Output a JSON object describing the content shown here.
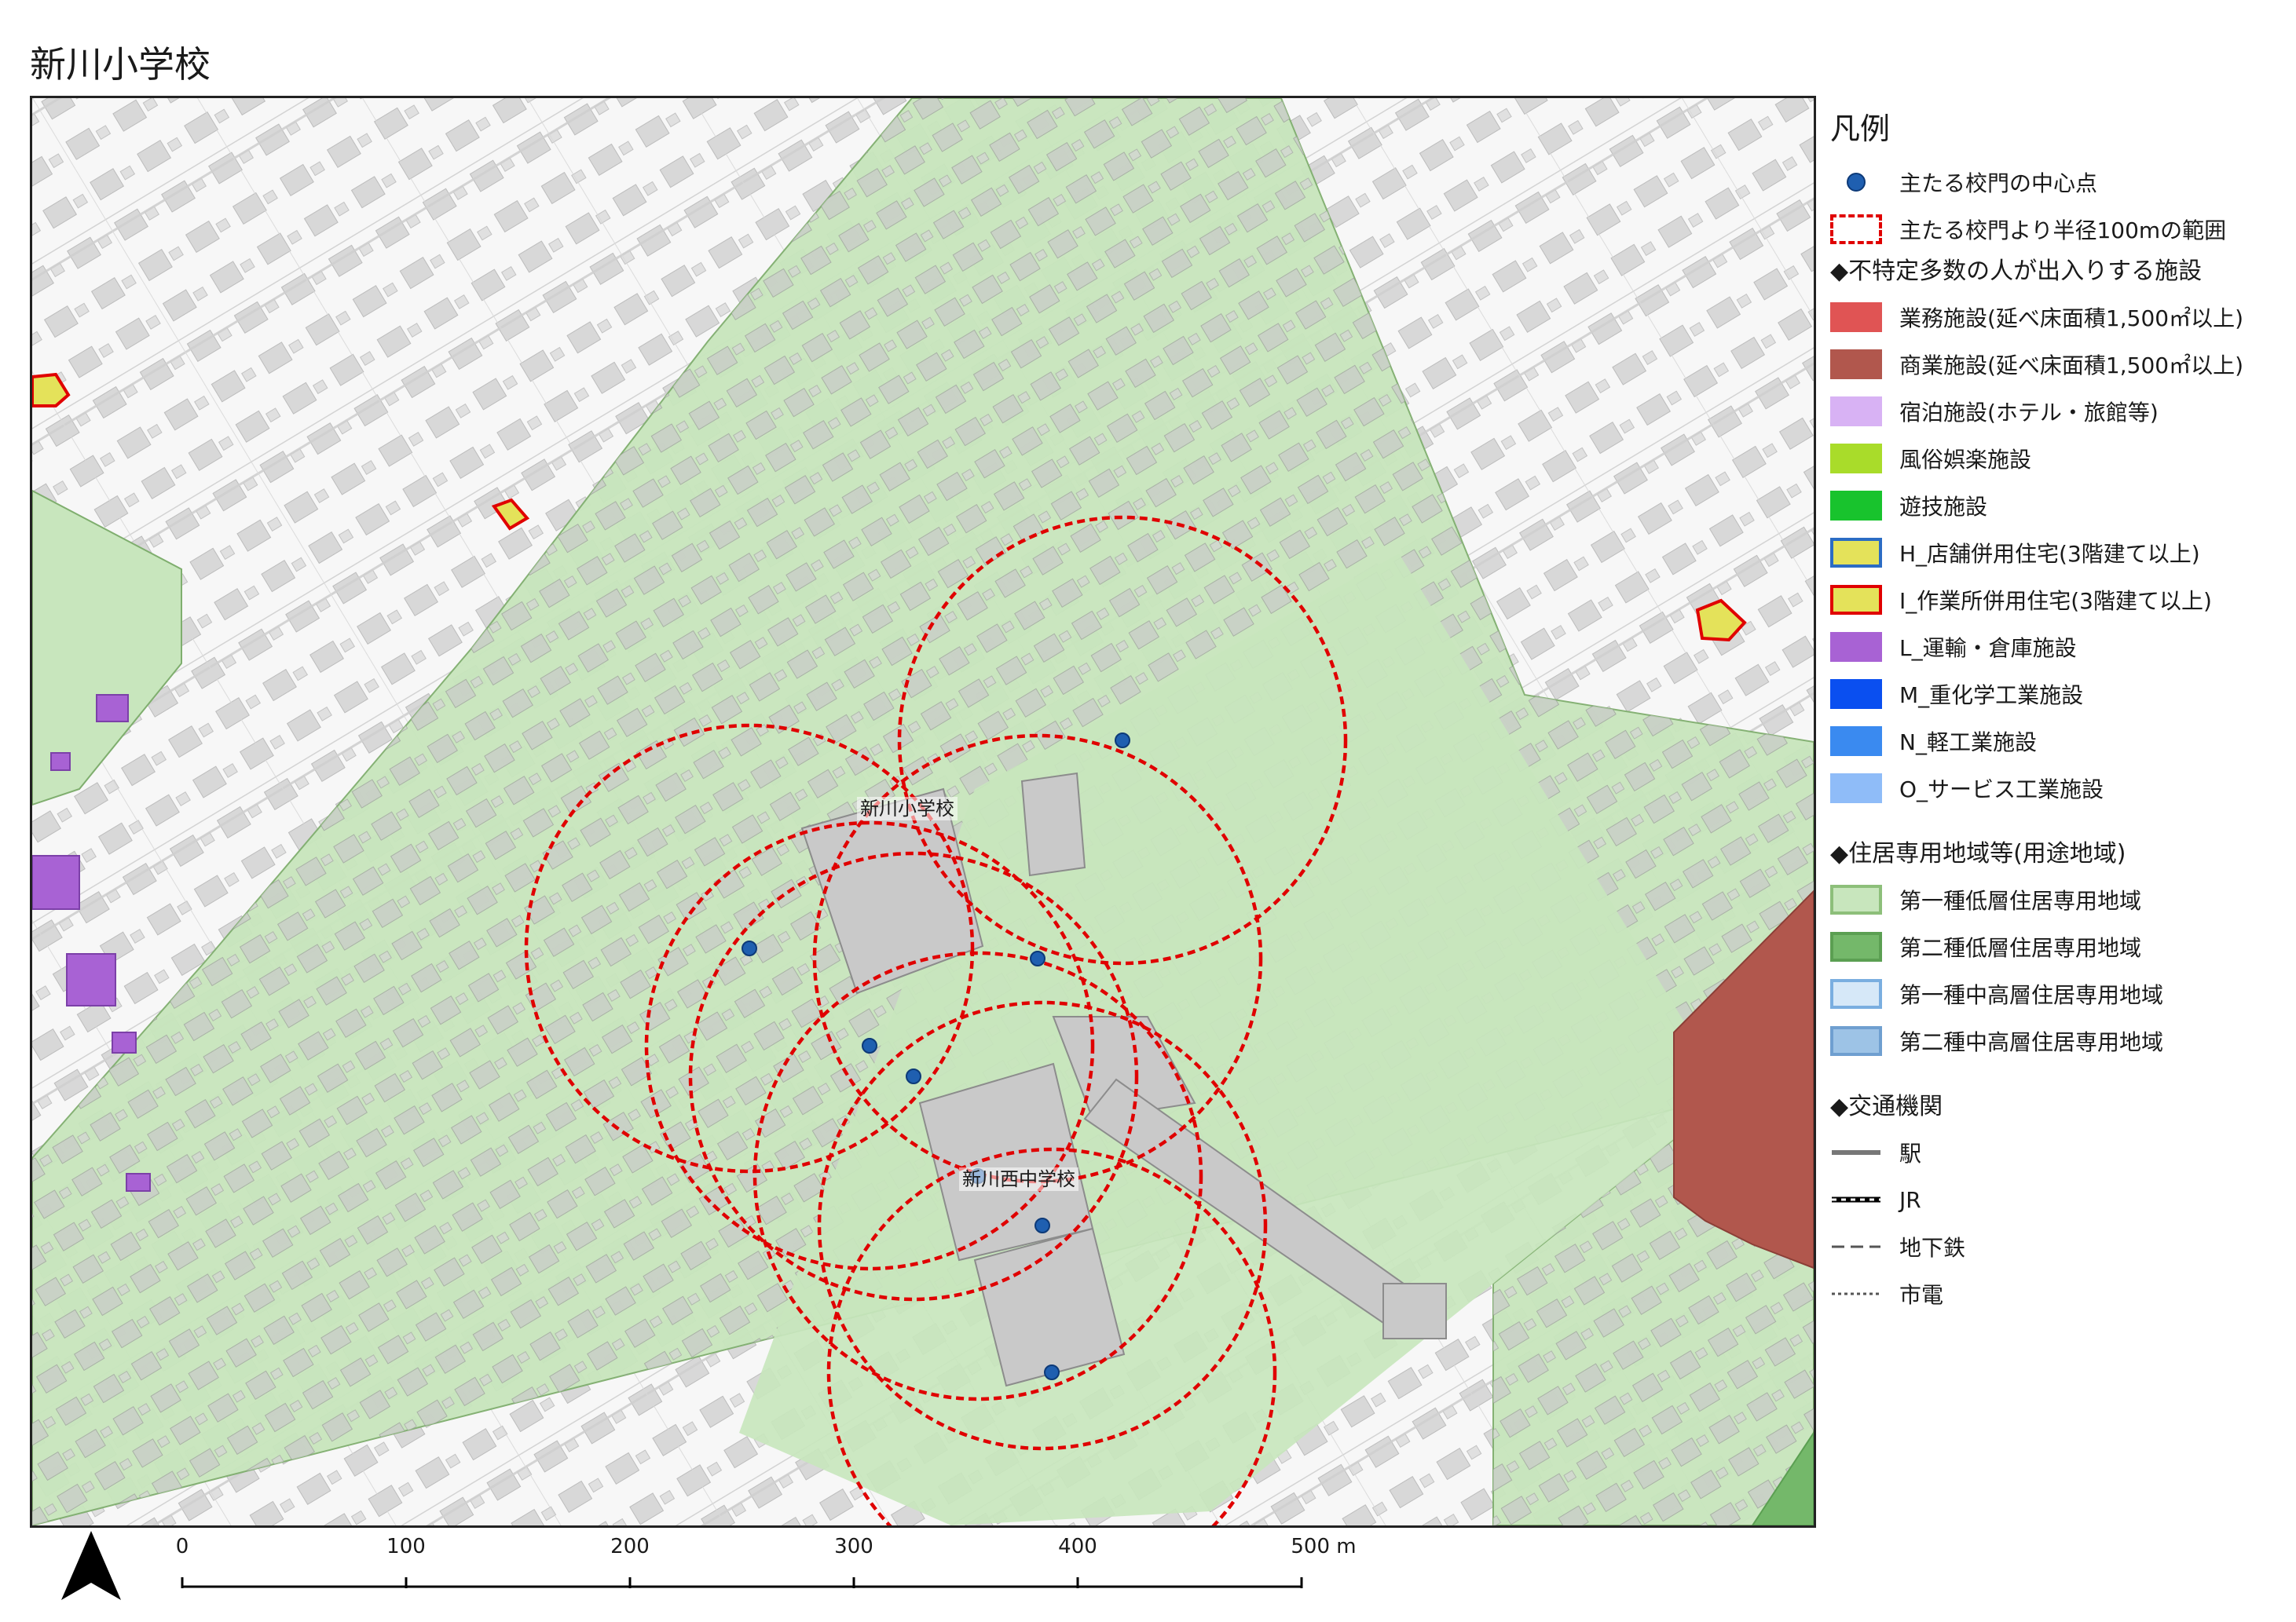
{
  "title": "新川小学校",
  "map": {
    "labels": {
      "school": "新川小学校",
      "middle_school": "新川西中学校"
    },
    "gate_points": [
      [
        913,
        1083
      ],
      [
        1066,
        1207
      ],
      [
        1122,
        1246
      ],
      [
        1280,
        1096
      ],
      [
        1204,
        1373
      ],
      [
        1286,
        1436
      ],
      [
        1298,
        1623
      ],
      [
        1388,
        818
      ]
    ],
    "buffer_circles_r": 284
  },
  "legend": {
    "title": "凡例",
    "gate_point": "主たる校門の中心点",
    "gate_range": "主たる校門より半径100mの範囲",
    "section_facilities": "◆不特定多数の人が出入りする施設",
    "facilities": [
      {
        "label": "業務施設(延べ床面積1,500㎡以上)",
        "fill": "#e05454",
        "stroke": "#e05454"
      },
      {
        "label": "商業施設(延べ床面積1,500㎡以上)",
        "fill": "#b1574d",
        "stroke": "#b1574d"
      },
      {
        "label": "宿泊施設(ホテル・旅館等)",
        "fill": "#d8b2f4",
        "stroke": "#d8b2f4"
      },
      {
        "label": "風俗娯楽施設",
        "fill": "#a9dc2a",
        "stroke": "#a9dc2a"
      },
      {
        "label": "遊技施設",
        "fill": "#18c32d",
        "stroke": "#18c32d"
      },
      {
        "label": "H_店舗併用住宅(3階建て以上)",
        "fill": "#e4e25a",
        "stroke": "#2b6cc4"
      },
      {
        "label": "I_作業所併用住宅(3階建て以上)",
        "fill": "#e4e25a",
        "stroke": "#e00000"
      },
      {
        "label": "L_運輸・倉庫施設",
        "fill": "#a862d4",
        "stroke": "#a862d4"
      },
      {
        "label": "M_重化学工業施設",
        "fill": "#0a4ff0",
        "stroke": "#0a4ff0"
      },
      {
        "label": "N_軽工業施設",
        "fill": "#3a8af0",
        "stroke": "#3a8af0"
      },
      {
        "label": "O_サービス工業施設",
        "fill": "#8fbcf8",
        "stroke": "#8fbcf8"
      }
    ],
    "section_zones": "◆住居専用地域等(用途地域)",
    "zones": [
      {
        "label": "第一種低層住居専用地域",
        "fill": "#c8e6bd",
        "stroke": "#8dbf7a"
      },
      {
        "label": "第二種低層住居専用地域",
        "fill": "#74b86a",
        "stroke": "#5b9f52"
      },
      {
        "label": "第一種中高層住居専用地域",
        "fill": "#d6e8f8",
        "stroke": "#7aaee0"
      },
      {
        "label": "第二種中高層住居専用地域",
        "fill": "#9dc3e6",
        "stroke": "#6f9fd0"
      }
    ],
    "section_transport": "◆交通機関",
    "transport": [
      {
        "label": "駅",
        "style": "solid"
      },
      {
        "label": "JR",
        "style": "rail"
      },
      {
        "label": "地下鉄",
        "style": "dash"
      },
      {
        "label": "市電",
        "style": "dot"
      }
    ]
  },
  "scale": {
    "ticks": [
      "0",
      "100",
      "200",
      "300",
      "400",
      "500 m"
    ]
  },
  "colors": {
    "zone1_fill": "#c8e6bd",
    "zone2_fill": "#74b86a",
    "building": "#c9c9c9",
    "road_edge": "#cfcfcf",
    "circle": "#e00000",
    "gate_point": "#1f5fb0",
    "commercial": "#b1574d",
    "warehouse": "#a862d4"
  }
}
